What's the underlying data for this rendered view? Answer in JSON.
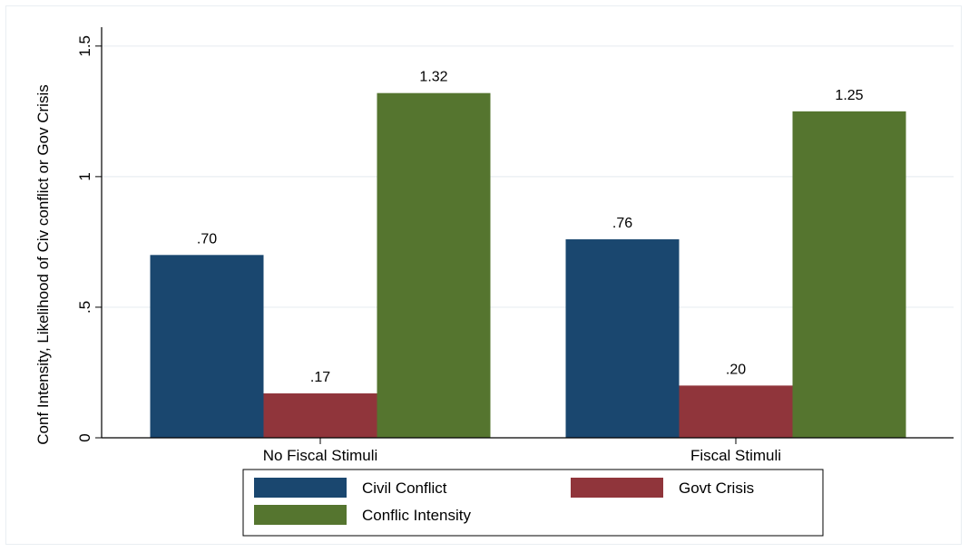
{
  "chart_data": {
    "type": "bar",
    "title": "",
    "xlabel": "",
    "ylabel": "Conf Intensity, Likelihood of Civ conflict or Gov Crisis",
    "ylim": [
      0,
      1.6
    ],
    "yticks": [
      0,
      0.5,
      1,
      1.5
    ],
    "ytick_labels": [
      "0",
      ".5",
      "1",
      "1.5"
    ],
    "grid": true,
    "legend_position": "bottom",
    "categories": [
      "No Fiscal Stimuli",
      "Fiscal Stimuli"
    ],
    "series": [
      {
        "name": "Civil Conflict",
        "color": "#1a476f",
        "values": [
          0.7,
          0.76
        ],
        "labels": [
          ".70",
          ".76"
        ]
      },
      {
        "name": "Govt Crisis",
        "color": "#90353b",
        "values": [
          0.17,
          0.2
        ],
        "labels": [
          ".17",
          ".20"
        ]
      },
      {
        "name": "Conflic Intensity",
        "color": "#55752f",
        "values": [
          1.32,
          1.25
        ],
        "labels": [
          "1.32",
          "1.25"
        ]
      }
    ]
  }
}
